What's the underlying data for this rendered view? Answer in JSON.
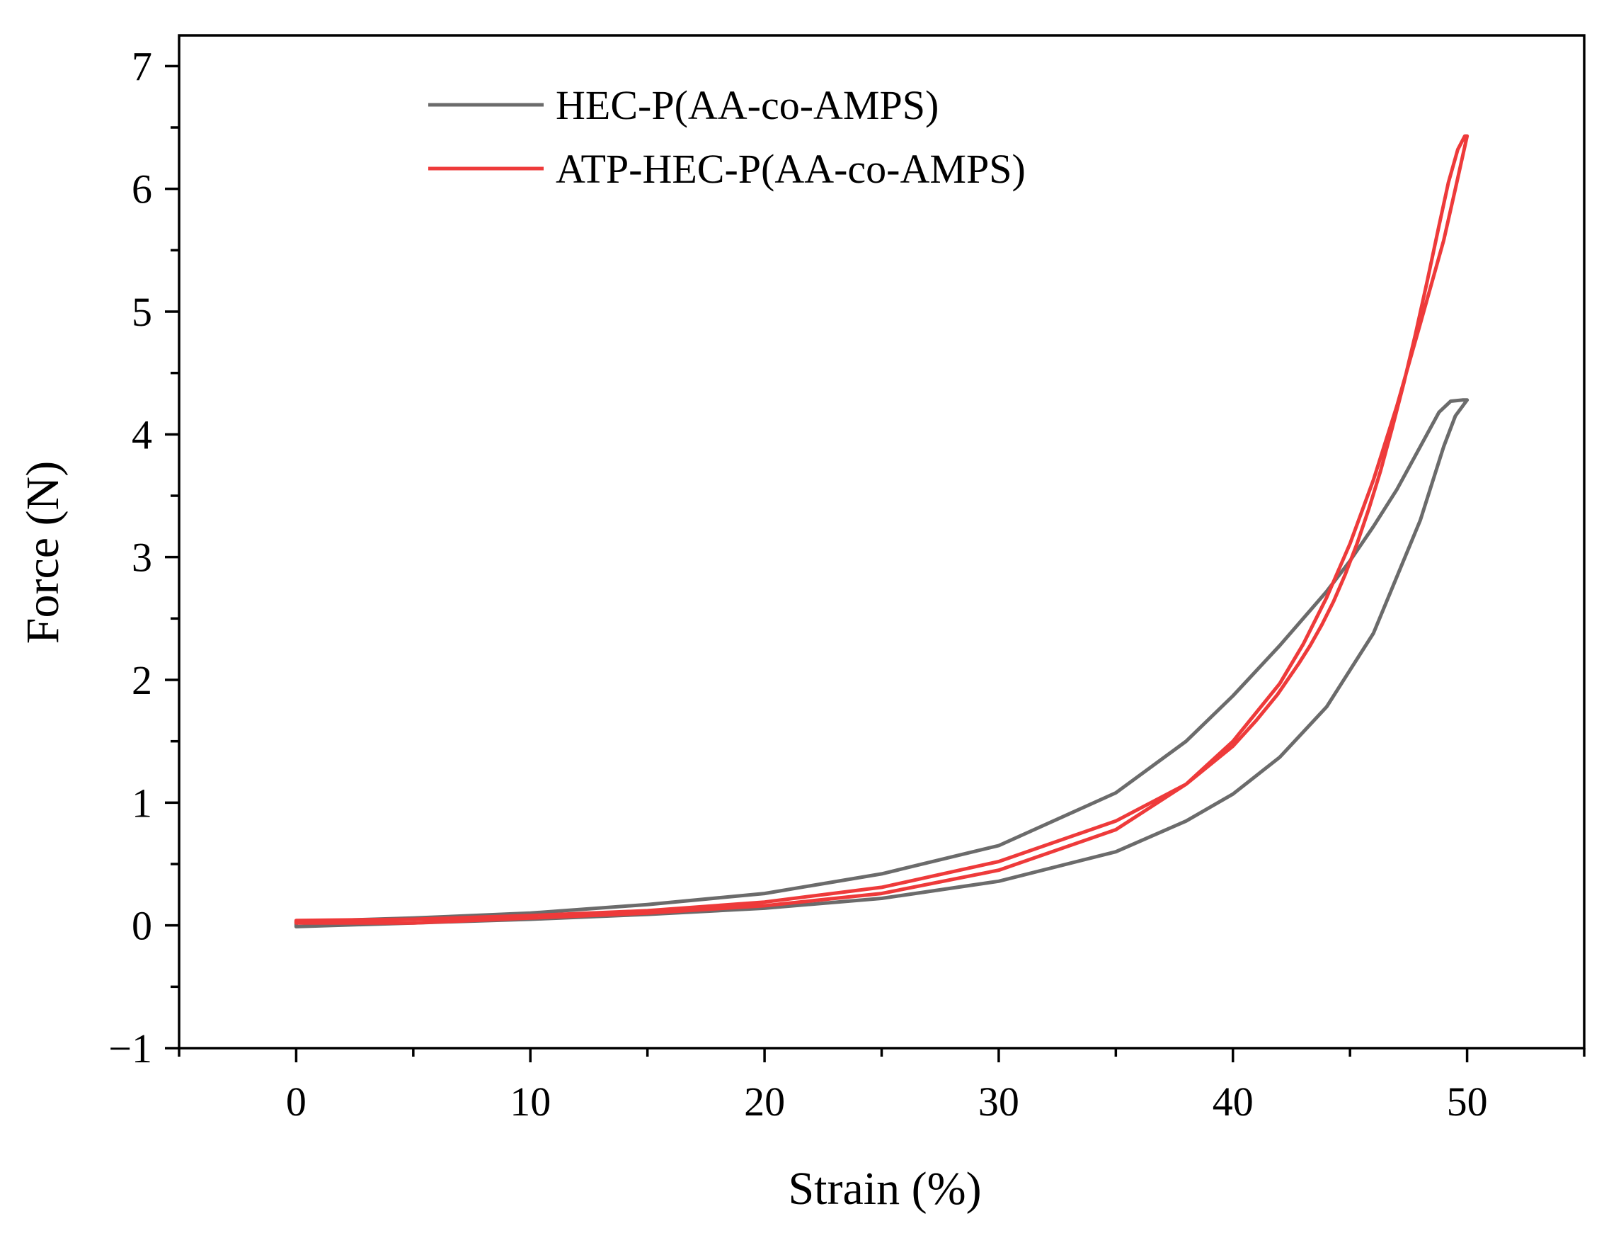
{
  "chart_data": {
    "type": "line",
    "title": "",
    "xlabel": "Strain (%)",
    "ylabel": "Force (N)",
    "xlim": [
      -5,
      55
    ],
    "ylim": [
      -1,
      7.25
    ],
    "x_ticks": [
      0,
      10,
      20,
      30,
      40,
      50
    ],
    "x_tick_labels": [
      "0",
      "10",
      "20",
      "30",
      "40",
      "50"
    ],
    "x_minor_ticks": [
      -5,
      5,
      15,
      25,
      35,
      45,
      55
    ],
    "y_ticks": [
      -1,
      0,
      1,
      2,
      3,
      4,
      5,
      6,
      7
    ],
    "y_tick_labels": [
      "−1",
      "0",
      "1",
      "2",
      "3",
      "4",
      "5",
      "6",
      "7"
    ],
    "y_minor_ticks": [
      -0.5,
      0.5,
      1.5,
      2.5,
      3.5,
      4.5,
      5.5,
      6.5
    ],
    "grid": false,
    "legend_position": "top-left",
    "series": [
      {
        "name": "HEC-P(AA-co-AMPS)",
        "color": "#6b6b6b",
        "x": [
          0,
          5,
          10,
          15,
          20,
          25,
          30,
          35,
          38,
          40,
          42,
          44,
          46,
          48,
          49,
          49.5,
          50,
          49.8,
          49.3,
          48.8,
          48,
          47,
          46,
          45,
          44,
          42,
          40,
          38,
          35,
          30,
          25,
          20,
          15,
          10,
          5,
          0,
          0
        ],
        "y": [
          -0.01,
          0.02,
          0.05,
          0.09,
          0.14,
          0.22,
          0.36,
          0.6,
          0.85,
          1.07,
          1.37,
          1.78,
          2.38,
          3.3,
          3.9,
          4.15,
          4.28,
          4.28,
          4.27,
          4.18,
          3.9,
          3.55,
          3.25,
          2.97,
          2.72,
          2.28,
          1.87,
          1.5,
          1.08,
          0.65,
          0.42,
          0.26,
          0.17,
          0.1,
          0.06,
          0.03,
          -0.01
        ]
      },
      {
        "name": "ATP-HEC-P(AA-co-AMPS)",
        "color": "#ee3a3a",
        "x": [
          0,
          5,
          10,
          15,
          20,
          25,
          30,
          35,
          38,
          40,
          42,
          43,
          44,
          45,
          46,
          47,
          48,
          49,
          49.5,
          50,
          49.9,
          49.6,
          49.2,
          48.8,
          48.3,
          47.8,
          47.3,
          46.8,
          46.3,
          45.8,
          45.3,
          44.8,
          44.3,
          43.8,
          43.3,
          42.8,
          41.9,
          41,
          40,
          38,
          35,
          30,
          25,
          20,
          15,
          10,
          5,
          0,
          0
        ],
        "y": [
          0.02,
          0.02,
          0.06,
          0.1,
          0.16,
          0.26,
          0.45,
          0.78,
          1.15,
          1.5,
          1.97,
          2.29,
          2.67,
          3.11,
          3.63,
          4.23,
          4.9,
          5.58,
          6.0,
          6.43,
          6.43,
          6.32,
          6.05,
          5.7,
          5.25,
          4.82,
          4.42,
          4.05,
          3.7,
          3.39,
          3.11,
          2.86,
          2.64,
          2.45,
          2.28,
          2.13,
          1.88,
          1.67,
          1.46,
          1.15,
          0.85,
          0.52,
          0.31,
          0.19,
          0.12,
          0.08,
          0.05,
          0.04,
          0.02
        ]
      }
    ]
  }
}
